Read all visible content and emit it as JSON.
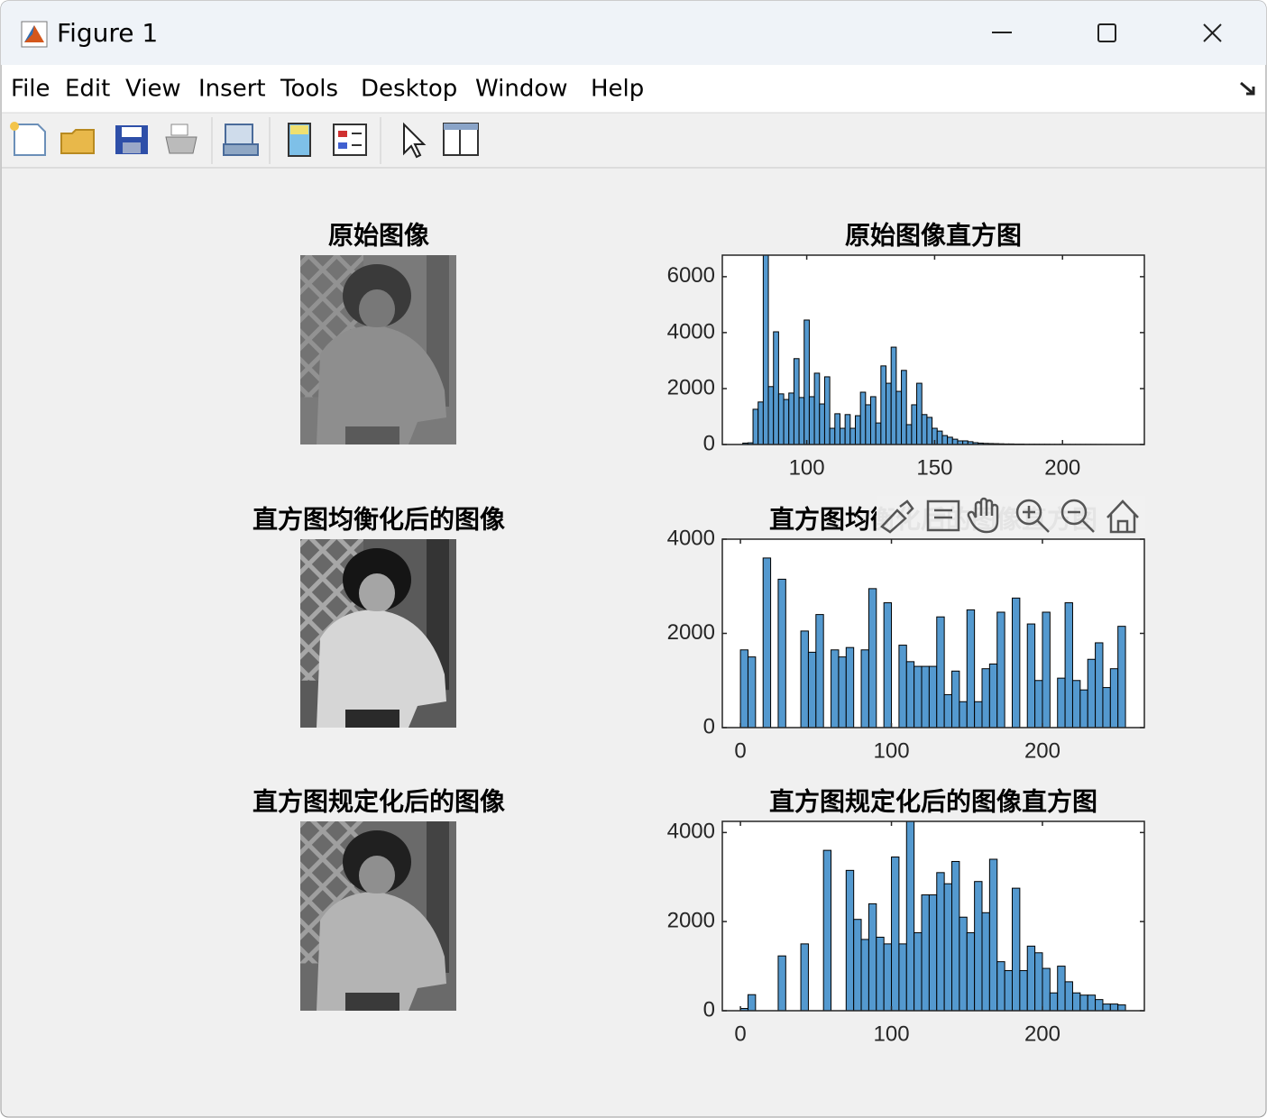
{
  "window": {
    "title": "Figure 1"
  },
  "menu": [
    "File",
    "Edit",
    "View",
    "Insert",
    "Tools",
    "Desktop",
    "Window",
    "Help"
  ],
  "images": [
    {
      "title": "原始图像"
    },
    {
      "title": "直方图均衡化后的图像"
    },
    {
      "title": "直方图规定化后的图像"
    }
  ],
  "chart_data": [
    {
      "type": "histogram",
      "title": "原始图像直方图",
      "color": "#5499cf",
      "bins": [
        75,
        77,
        79,
        81,
        83,
        85,
        87,
        89,
        91,
        93,
        95,
        97,
        99,
        101,
        103,
        105,
        107,
        109,
        111,
        113,
        115,
        117,
        119,
        121,
        123,
        125,
        127,
        129,
        131,
        133,
        135,
        137,
        139,
        141,
        143,
        145,
        147,
        149,
        151,
        153,
        155,
        157,
        159,
        161,
        163,
        165,
        167,
        169,
        171,
        173,
        175,
        177,
        179,
        181,
        183,
        185,
        187,
        189,
        191,
        193,
        195,
        197,
        199,
        201,
        203,
        205,
        207,
        209,
        211,
        213,
        215,
        217,
        219,
        221,
        223
      ],
      "values": [
        50,
        60,
        1260,
        1520,
        6770,
        2070,
        4030,
        1810,
        1610,
        1840,
        3070,
        1680,
        4450,
        1710,
        2550,
        1450,
        2420,
        580,
        1100,
        580,
        1070,
        580,
        1030,
        1870,
        1420,
        1710,
        770,
        2810,
        2190,
        3480,
        1900,
        2650,
        710,
        1420,
        2190,
        1070,
        970,
        580,
        480,
        320,
        260,
        190,
        130,
        130,
        100,
        65,
        50,
        40,
        35,
        30,
        25,
        20,
        20,
        15,
        15,
        10,
        10,
        10,
        8,
        8,
        6,
        6,
        5,
        5,
        4,
        4,
        3,
        3,
        3,
        2,
        2,
        2,
        1,
        1
      ],
      "xlim": [
        67,
        232
      ],
      "ylim": [
        0,
        6770
      ],
      "xticks": [
        100,
        150,
        200
      ],
      "yticks": [
        0,
        2000,
        4000,
        6000
      ]
    },
    {
      "type": "histogram",
      "title": "直方图均衡化后的图像直方图",
      "color": "#5499cf",
      "bins": [
        0,
        5,
        10,
        15,
        20,
        25,
        30,
        35,
        40,
        45,
        50,
        55,
        60,
        65,
        70,
        75,
        80,
        85,
        90,
        95,
        100,
        105,
        110,
        115,
        120,
        125,
        130,
        135,
        140,
        145,
        150,
        155,
        160,
        165,
        170,
        175,
        180,
        185,
        190,
        195,
        200,
        205,
        210,
        215,
        220,
        225,
        230,
        235,
        240,
        245,
        250,
        255
      ],
      "values": [
        1650,
        1500,
        0,
        3600,
        0,
        3150,
        0,
        0,
        2050,
        1600,
        2400,
        0,
        1650,
        1500,
        1700,
        0,
        1650,
        2950,
        0,
        2650,
        0,
        1750,
        1400,
        1300,
        1300,
        1300,
        2350,
        700,
        1200,
        550,
        2500,
        550,
        1250,
        1350,
        2450,
        0,
        2750,
        0,
        2200,
        1000,
        2450,
        0,
        1050,
        2650,
        1000,
        800,
        1450,
        1800,
        850,
        1250,
        2150
      ],
      "xlim": [
        -12,
        267.5
      ],
      "ylim": [
        0,
        4000
      ],
      "xticks": [
        0,
        100,
        200
      ],
      "yticks": [
        0,
        2000,
        4000
      ]
    },
    {
      "type": "histogram",
      "title": "直方图规定化后的图像直方图",
      "color": "#5499cf",
      "bins": [
        0,
        5,
        10,
        15,
        20,
        25,
        30,
        35,
        40,
        45,
        50,
        55,
        60,
        65,
        70,
        75,
        80,
        85,
        90,
        95,
        100,
        105,
        110,
        115,
        120,
        125,
        130,
        135,
        140,
        145,
        150,
        155,
        160,
        165,
        170,
        175,
        180,
        185,
        190,
        195,
        200,
        205,
        210,
        215,
        220,
        225,
        230,
        235,
        240,
        245,
        250,
        255
      ],
      "values": [
        50,
        360,
        0,
        0,
        0,
        1230,
        0,
        0,
        1500,
        0,
        0,
        3600,
        0,
        0,
        3150,
        2050,
        1600,
        2400,
        1650,
        1500,
        3450,
        1500,
        4250,
        1750,
        2600,
        2600,
        3100,
        2850,
        3350,
        2100,
        1750,
        2900,
        2200,
        3400,
        1100,
        900,
        2750,
        900,
        1450,
        1300,
        950,
        400,
        1000,
        650,
        400,
        350,
        350,
        250,
        150,
        150,
        130
      ],
      "xlim": [
        -12,
        267.5
      ],
      "ylim": [
        0,
        4250
      ],
      "xticks": [
        0,
        100,
        200
      ],
      "yticks": [
        0,
        2000,
        4000
      ]
    }
  ]
}
